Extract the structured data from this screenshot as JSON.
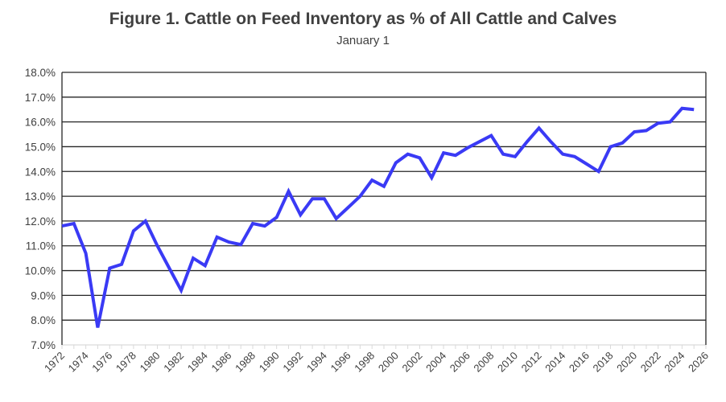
{
  "chart_data": {
    "type": "line",
    "title": "Figure 1. Cattle on Feed Inventory as % of All Cattle and Calves",
    "subtitle": "January 1",
    "xlabel": "",
    "ylabel": "",
    "xlim": [
      1972,
      2026
    ],
    "ylim": [
      7.0,
      18.0
    ],
    "y_ticks": [
      "7.0%",
      "8.0%",
      "9.0%",
      "10.0%",
      "11.0%",
      "12.0%",
      "13.0%",
      "14.0%",
      "15.0%",
      "16.0%",
      "17.0%",
      "18.0%"
    ],
    "x_ticks": [
      "1972",
      "1974",
      "1976",
      "1978",
      "1980",
      "1982",
      "1984",
      "1986",
      "1988",
      "1990",
      "1992",
      "1994",
      "1996",
      "1998",
      "2000",
      "2002",
      "2004",
      "2006",
      "2008",
      "2010",
      "2012",
      "2014",
      "2016",
      "2018",
      "2020",
      "2022",
      "2024",
      "2026"
    ],
    "grid": "horizontal",
    "line_color": "#3a3af5",
    "x": [
      1972,
      1973,
      1974,
      1975,
      1976,
      1977,
      1978,
      1979,
      1980,
      1981,
      1982,
      1983,
      1984,
      1985,
      1986,
      1987,
      1988,
      1989,
      1990,
      1991,
      1992,
      1993,
      1994,
      1995,
      1996,
      1997,
      1998,
      1999,
      2000,
      2001,
      2002,
      2003,
      2004,
      2005,
      2006,
      2007,
      2008,
      2009,
      2010,
      2011,
      2012,
      2013,
      2014,
      2015,
      2016,
      2017,
      2018,
      2019,
      2020,
      2021,
      2022,
      2023,
      2024,
      2025
    ],
    "values": [
      11.8,
      11.9,
      10.7,
      7.7,
      10.1,
      10.25,
      11.6,
      12.0,
      11.0,
      10.1,
      9.2,
      10.5,
      10.2,
      11.35,
      11.15,
      11.05,
      11.9,
      11.8,
      12.15,
      13.2,
      12.25,
      12.9,
      12.9,
      12.1,
      12.55,
      13.0,
      13.65,
      13.4,
      14.35,
      14.7,
      14.55,
      13.75,
      14.75,
      14.65,
      14.95,
      15.2,
      15.45,
      14.7,
      14.6,
      15.2,
      15.75,
      15.2,
      14.7,
      14.6,
      14.3,
      14.0,
      15.0,
      15.15,
      15.6,
      15.65,
      15.95,
      16.0,
      16.55,
      16.5
    ]
  }
}
